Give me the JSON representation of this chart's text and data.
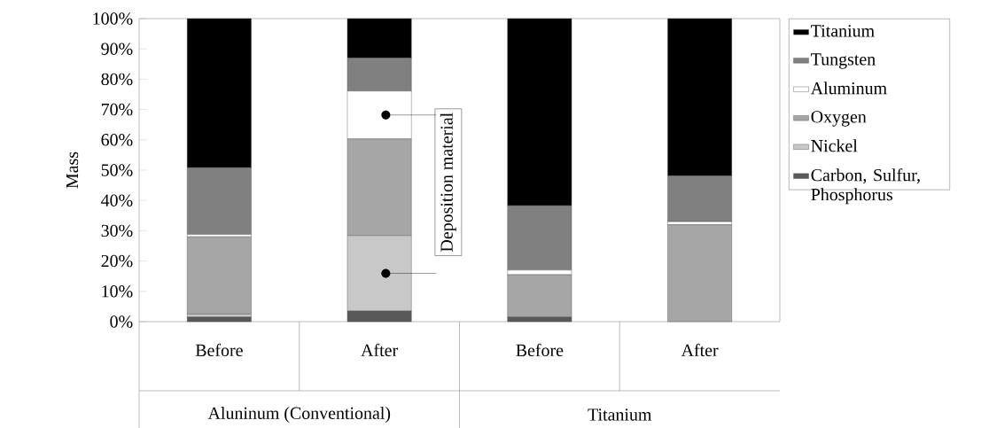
{
  "chart_data": {
    "type": "bar",
    "stacked": true,
    "ylabel": "Mass",
    "categories": [
      "Before",
      "After",
      "Before",
      "After"
    ],
    "ylim": [
      0,
      100
    ],
    "yticks": [
      {
        "value": 0,
        "label": "0%"
      },
      {
        "value": 10,
        "label": "10%"
      },
      {
        "value": 20,
        "label": "20%"
      },
      {
        "value": 30,
        "label": "30%"
      },
      {
        "value": 40,
        "label": "40%"
      },
      {
        "value": 50,
        "label": "50%"
      },
      {
        "value": 60,
        "label": "60%"
      },
      {
        "value": 70,
        "label": "70%"
      },
      {
        "value": 80,
        "label": "80%"
      },
      {
        "value": 90,
        "label": "90%"
      },
      {
        "value": 100,
        "label": "100%"
      }
    ],
    "series": [
      {
        "name": "Carbon, Sulfur, Phosphorus",
        "color": "#595959",
        "values": [
          1.5,
          3.5,
          1.5,
          0
        ]
      },
      {
        "name": "Nickel",
        "color": "#c8c8c8",
        "values": [
          1,
          24.9,
          0,
          0
        ]
      },
      {
        "name": "Oxygen",
        "color": "#a6a6a6",
        "values": [
          25.5,
          31.9,
          14,
          32
        ]
      },
      {
        "name": "Aluminum",
        "color": "#ffffff",
        "values": [
          0.8,
          15.8,
          1.5,
          1
        ]
      },
      {
        "name": "Tungsten",
        "color": "#808080",
        "values": [
          22,
          10.9,
          21.3,
          15.1
        ]
      },
      {
        "name": "Titanium",
        "color": "#000000",
        "values": [
          49.2,
          13,
          61.7,
          51.9
        ]
      }
    ],
    "annotations": [
      "Deposition material",
      "Aluninum (Conventional)",
      "Titanium"
    ],
    "legend": "right",
    "grid": false
  }
}
